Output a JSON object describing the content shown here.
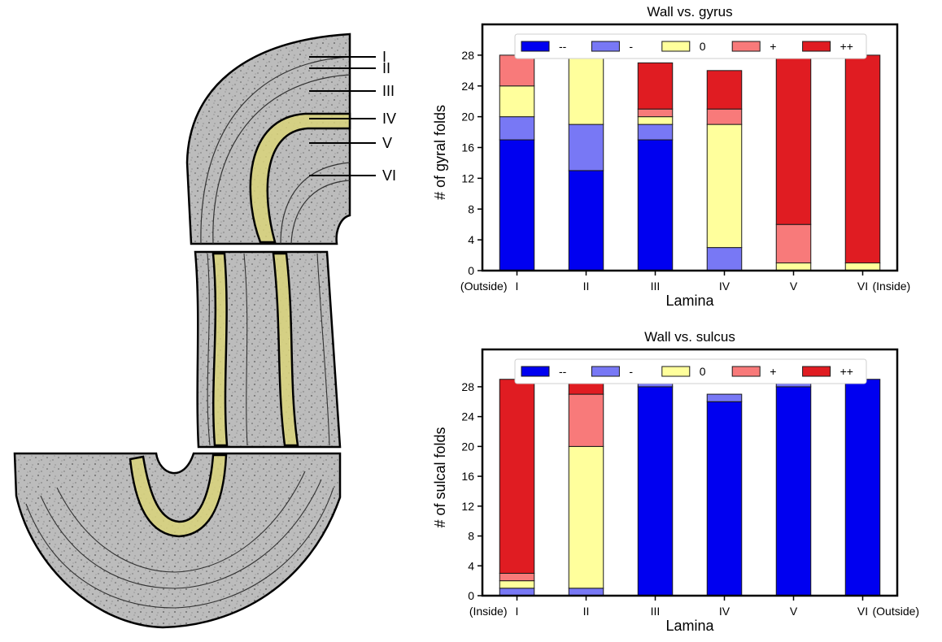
{
  "colors": {
    "--": "#0000f0",
    "-": "#7878f5",
    "0": "#ffff9c",
    "+": "#f87a7a",
    "++": "#e01c22",
    "band": "#d9d47a",
    "tissue": "#bdbdbd"
  },
  "diagram": {
    "lamina_labels": [
      "I",
      "II",
      "III",
      "IV",
      "V",
      "VI"
    ]
  },
  "chart_data": [
    {
      "type": "bar",
      "stacked": true,
      "title": "Wall vs. gyrus",
      "xlabel": "Lamina",
      "ylabel": "# of gyral folds",
      "categories": [
        "I",
        "II",
        "III",
        "IV",
        "V",
        "VI"
      ],
      "edge_labels": {
        "left": "(Outside)",
        "right": "(Inside)"
      },
      "ylim": [
        0,
        32
      ],
      "yticks": [
        0,
        4,
        8,
        12,
        16,
        20,
        24,
        28
      ],
      "legend": "top-center",
      "series": [
        {
          "name": "--",
          "values": [
            17,
            13,
            17,
            0,
            0,
            0
          ]
        },
        {
          "name": "-",
          "values": [
            3,
            6,
            2,
            3,
            0,
            0
          ]
        },
        {
          "name": "0",
          "values": [
            4,
            9,
            1,
            16,
            1,
            1
          ]
        },
        {
          "name": "+",
          "values": [
            4,
            0,
            1,
            2,
            5,
            0
          ]
        },
        {
          "name": "++",
          "values": [
            0,
            0,
            6,
            5,
            22,
            27
          ]
        }
      ]
    },
    {
      "type": "bar",
      "stacked": true,
      "title": "Wall vs. sulcus",
      "xlabel": "Lamina",
      "ylabel": "# of sulcal folds",
      "categories": [
        "I",
        "II",
        "III",
        "IV",
        "V",
        "VI"
      ],
      "edge_labels": {
        "left": "(Inside)",
        "right": "(Outside)"
      },
      "ylim": [
        0,
        33
      ],
      "yticks": [
        0,
        4,
        8,
        12,
        16,
        20,
        24,
        28
      ],
      "legend": "top-center",
      "series": [
        {
          "name": "--",
          "values": [
            0,
            0,
            28,
            26,
            28,
            29
          ]
        },
        {
          "name": "-",
          "values": [
            1,
            1,
            1,
            1,
            1,
            0
          ]
        },
        {
          "name": "0",
          "values": [
            1,
            19,
            0,
            0,
            0,
            0
          ]
        },
        {
          "name": "+",
          "values": [
            1,
            7,
            0,
            0,
            0,
            0
          ]
        },
        {
          "name": "++",
          "values": [
            26,
            2,
            0,
            0,
            0,
            0
          ]
        }
      ]
    }
  ]
}
